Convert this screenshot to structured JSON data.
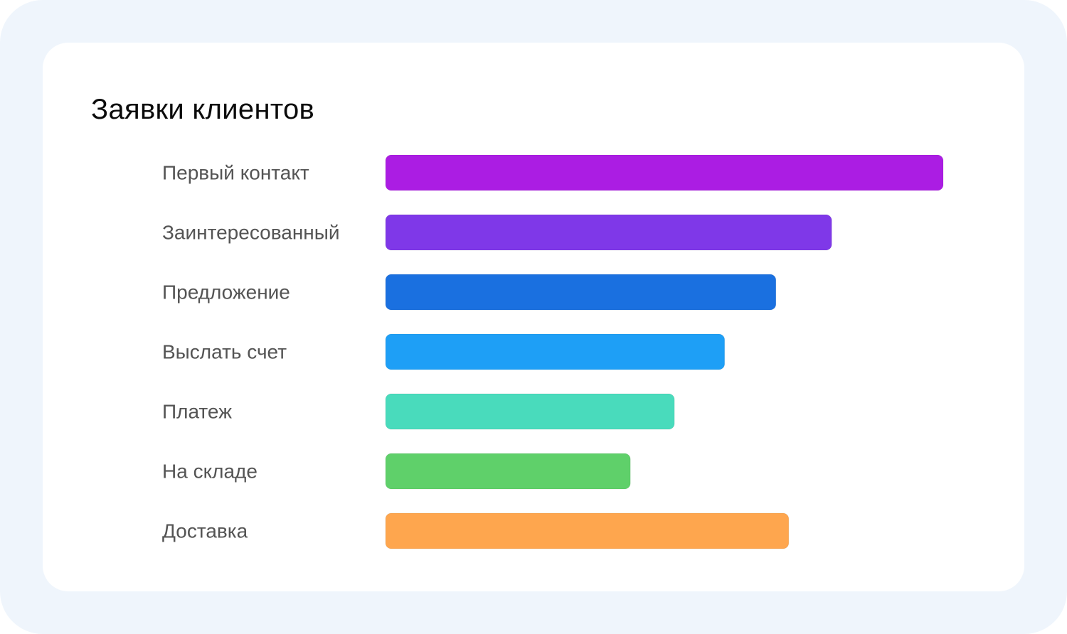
{
  "chart_data": {
    "type": "bar",
    "orientation": "horizontal",
    "title": "Заявки клиентов",
    "categories": [
      "Первый контакт",
      "Заинтересованный",
      "Предложение",
      "Выслать счет",
      "Платеж",
      "На складе",
      "Доставка"
    ],
    "values": [
      100,
      80,
      70,
      60.8,
      51.8,
      43.9,
      72.3
    ],
    "colors": [
      "#ab1de3",
      "#7f38e8",
      "#1a70e0",
      "#1e9ff6",
      "#49dbbc",
      "#5fd06a",
      "#fea64e"
    ],
    "xlim": [
      0,
      100
    ],
    "grid": false,
    "legend": false,
    "xlabel": "",
    "ylabel": ""
  }
}
